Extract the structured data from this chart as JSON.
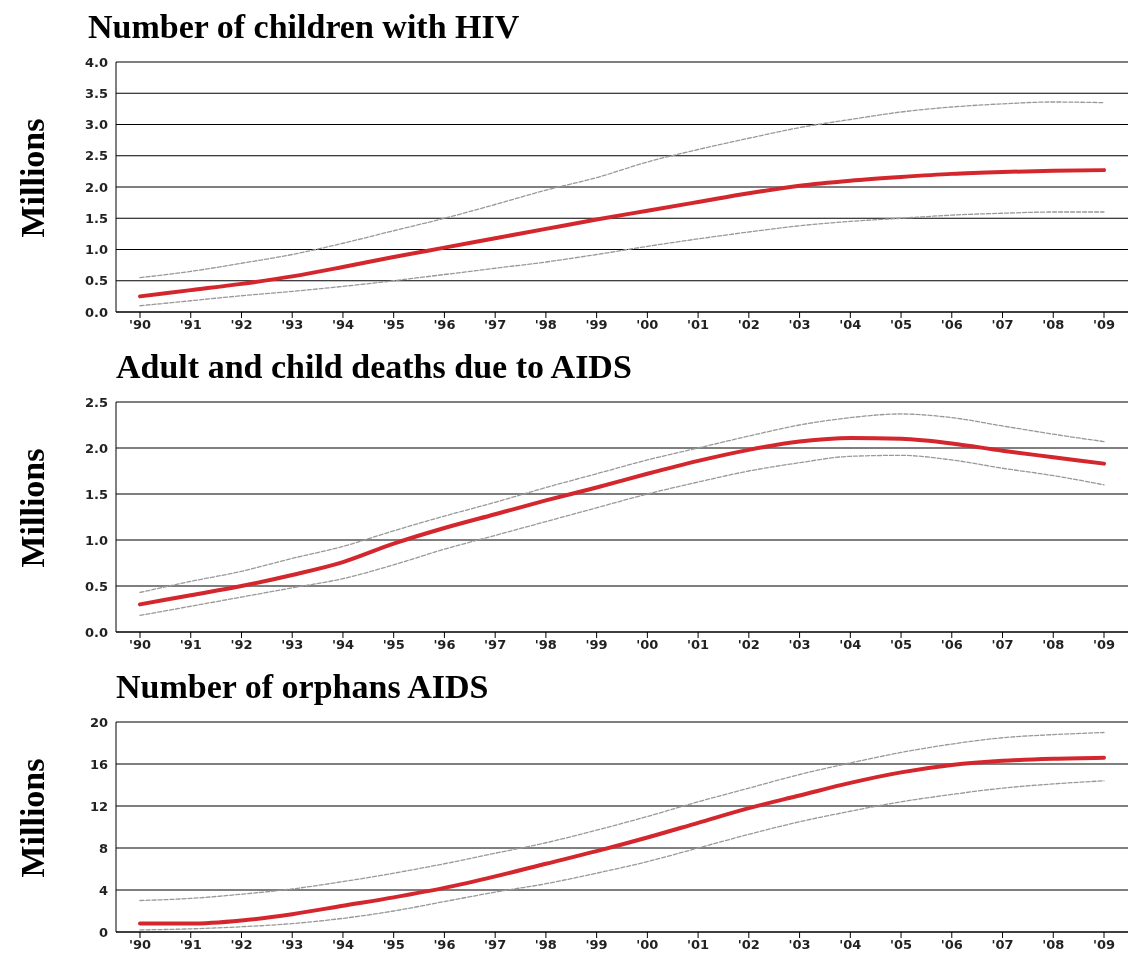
{
  "chart_data": [
    {
      "type": "line",
      "title": "Number of children with HIV",
      "ylabel": "Millions",
      "categories": [
        "'90",
        "'91",
        "'92",
        "'93",
        "'94",
        "'95",
        "'96",
        "'97",
        "'98",
        "'99",
        "'00",
        "'01",
        "'02",
        "'03",
        "'04",
        "'05",
        "'06",
        "'07",
        "'08",
        "'09"
      ],
      "series": [
        {
          "color": "#999999",
          "line_style": "dashed",
          "values": [
            0.55,
            0.65,
            0.78,
            0.92,
            1.1,
            1.3,
            1.5,
            1.72,
            1.95,
            2.15,
            2.4,
            2.6,
            2.78,
            2.95,
            3.08,
            3.2,
            3.28,
            3.33,
            3.36,
            3.35
          ]
        },
        {
          "color": "#999999",
          "line_style": "dashed",
          "values": [
            0.1,
            0.18,
            0.26,
            0.33,
            0.41,
            0.5,
            0.6,
            0.7,
            0.8,
            0.92,
            1.05,
            1.17,
            1.28,
            1.38,
            1.45,
            1.5,
            1.55,
            1.58,
            1.6,
            1.6
          ]
        },
        {
          "color": "#d3262d",
          "line_style": "solid",
          "values": [
            0.25,
            0.35,
            0.45,
            0.57,
            0.72,
            0.88,
            1.03,
            1.18,
            1.33,
            1.48,
            1.62,
            1.76,
            1.9,
            2.02,
            2.1,
            2.16,
            2.21,
            2.24,
            2.26,
            2.27
          ]
        }
      ],
      "ylim": [
        0,
        4
      ],
      "yticks": [
        {
          "value": 0,
          "label": "0.0"
        },
        0.5,
        {
          "value": 1,
          "label": "1.0"
        },
        1.5,
        {
          "value": 2,
          "label": "2.0"
        },
        2.5,
        {
          "value": 3,
          "label": "3.0"
        },
        3.5,
        {
          "value": 4,
          "label": "4.0"
        }
      ],
      "grid": "y",
      "marker": "none"
    },
    {
      "type": "line",
      "title": "Adult and child deaths due to AIDS",
      "ylabel": "Millions",
      "categories": [
        "'90",
        "'91",
        "'92",
        "'93",
        "'94",
        "'95",
        "'96",
        "'97",
        "'98",
        "'99",
        "'00",
        "'01",
        "'02",
        "'03",
        "'04",
        "'05",
        "'06",
        "'07",
        "'08",
        "'09"
      ],
      "series": [
        {
          "color": "#999999",
          "line_style": "dashed",
          "values": [
            0.43,
            0.55,
            0.66,
            0.8,
            0.93,
            1.1,
            1.26,
            1.41,
            1.57,
            1.72,
            1.87,
            2.0,
            2.13,
            2.25,
            2.33,
            2.37,
            2.33,
            2.24,
            2.15,
            2.07
          ]
        },
        {
          "color": "#999999",
          "line_style": "dashed",
          "values": [
            0.18,
            0.28,
            0.38,
            0.48,
            0.58,
            0.73,
            0.9,
            1.05,
            1.2,
            1.35,
            1.5,
            1.63,
            1.75,
            1.84,
            1.91,
            1.92,
            1.87,
            1.78,
            1.7,
            1.6
          ]
        },
        {
          "color": "#d3262d",
          "line_style": "solid",
          "values": [
            0.3,
            0.4,
            0.5,
            0.62,
            0.76,
            0.96,
            1.13,
            1.28,
            1.43,
            1.57,
            1.72,
            1.86,
            1.98,
            2.07,
            2.11,
            2.1,
            2.05,
            1.97,
            1.9,
            1.83
          ]
        }
      ],
      "ylim": [
        0,
        2.5
      ],
      "yticks": [
        {
          "value": 0,
          "label": "0.0"
        },
        0.5,
        {
          "value": 1,
          "label": "1.0"
        },
        1.5,
        {
          "value": 2,
          "label": "2.0"
        },
        2.5
      ],
      "grid": "y",
      "marker": "none"
    },
    {
      "type": "line",
      "title": "Number of orphans AIDS",
      "ylabel": "Millions",
      "categories": [
        "'90",
        "'91",
        "'92",
        "'93",
        "'94",
        "'95",
        "'96",
        "'97",
        "'98",
        "'99",
        "'00",
        "'01",
        "'02",
        "'03",
        "'04",
        "'05",
        "'06",
        "'07",
        "'08",
        "'09"
      ],
      "series": [
        {
          "color": "#999999",
          "line_style": "dashed",
          "values": [
            3.0,
            3.2,
            3.6,
            4.1,
            4.8,
            5.6,
            6.5,
            7.5,
            8.5,
            9.7,
            11,
            12.4,
            13.7,
            15,
            16.1,
            17.1,
            17.9,
            18.5,
            18.8,
            19.0
          ]
        },
        {
          "color": "#999999",
          "line_style": "dashed",
          "values": [
            0.2,
            0.3,
            0.5,
            0.8,
            1.3,
            2,
            2.9,
            3.8,
            4.6,
            5.6,
            6.7,
            8,
            9.3,
            10.5,
            11.5,
            12.4,
            13.1,
            13.7,
            14.1,
            14.4
          ]
        },
        {
          "color": "#d3262d",
          "line_style": "solid",
          "values": [
            0.8,
            0.8,
            1.1,
            1.7,
            2.5,
            3.3,
            4.2,
            5.3,
            6.5,
            7.7,
            9.0,
            10.4,
            11.8,
            13.0,
            14.2,
            15.2,
            15.9,
            16.3,
            16.5,
            16.6
          ]
        }
      ],
      "ylim": [
        0,
        20
      ],
      "yticks": [
        0,
        4,
        8,
        12,
        16,
        20
      ],
      "grid": "y",
      "marker": "none"
    }
  ]
}
